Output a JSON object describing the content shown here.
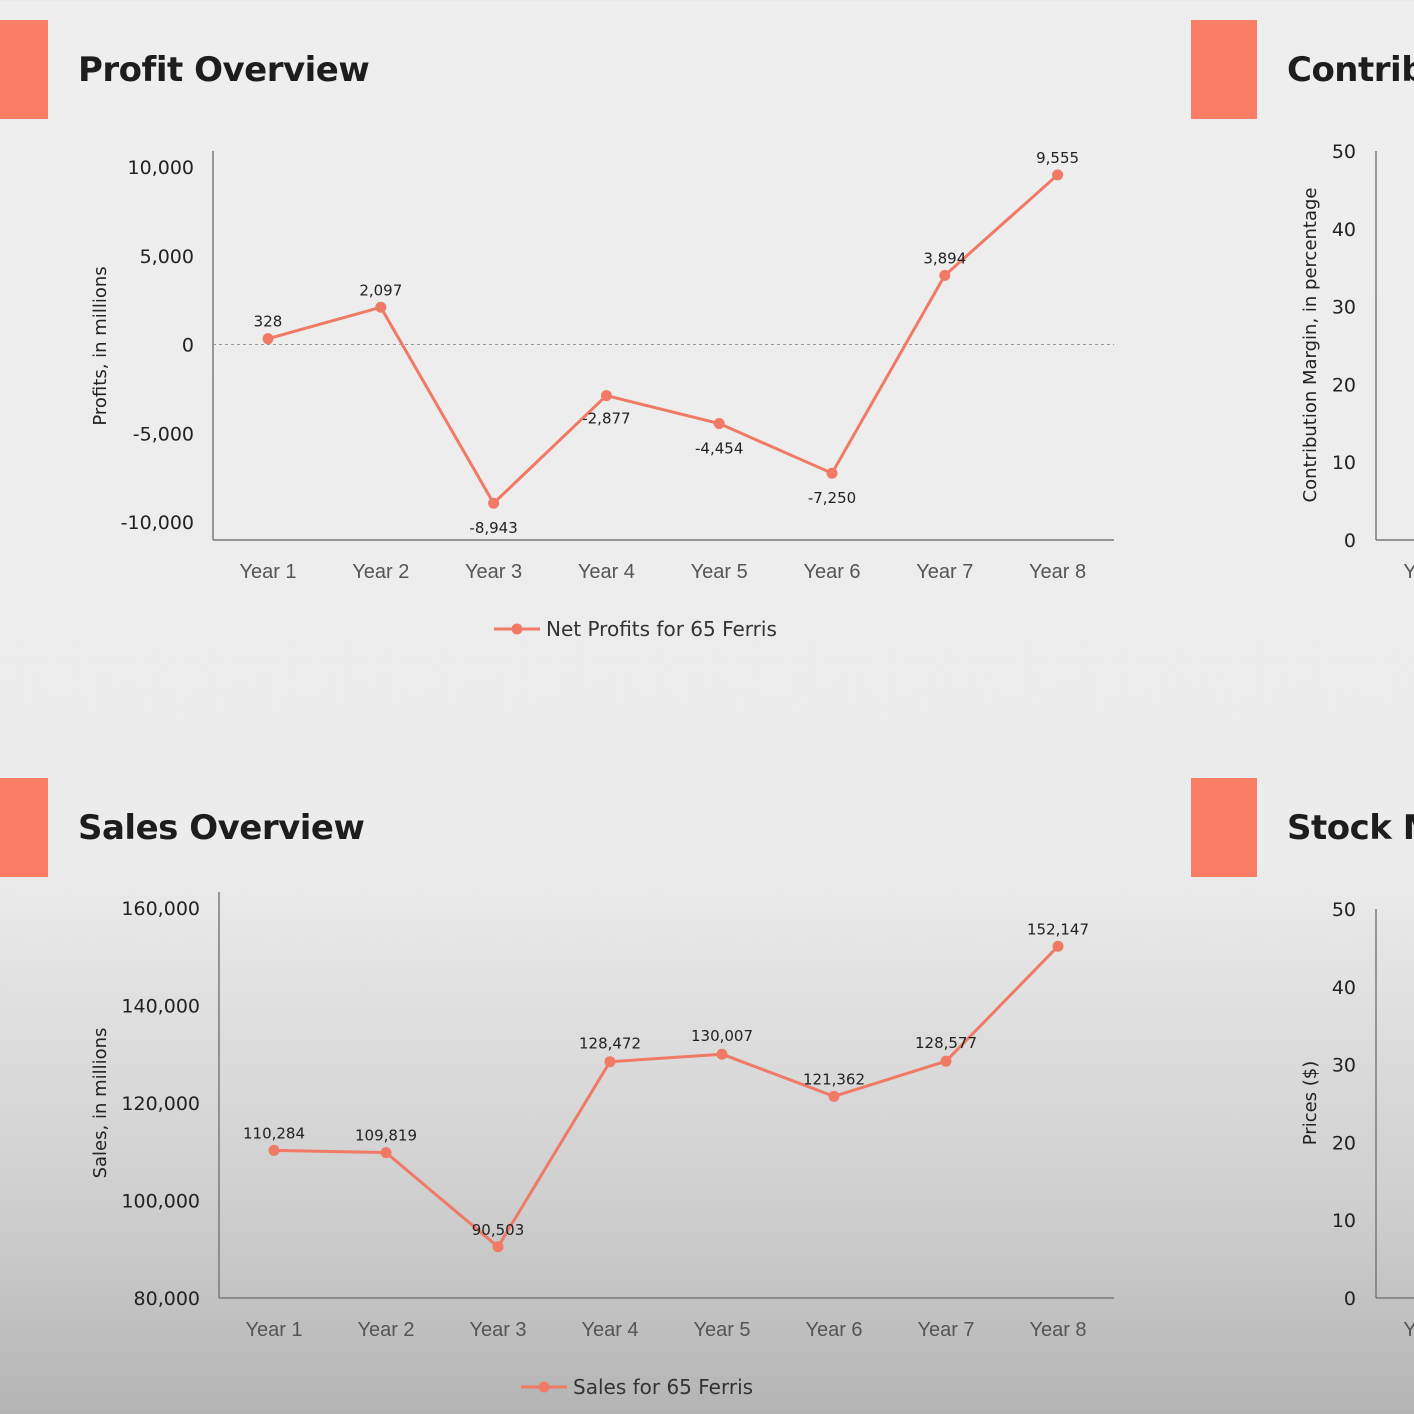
{
  "chart_data": [
    {
      "type": "line",
      "title": "Profit Overview",
      "ylabel": "Profits, in millions",
      "xlabel": "",
      "categories": [
        "Year 1",
        "Year 2",
        "Year 3",
        "Year 4",
        "Year 5",
        "Year 6",
        "Year 7",
        "Year 8"
      ],
      "series": [
        {
          "name": "Net Profits for 65 Ferris",
          "values": [
            328,
            2097,
            -8943,
            -2877,
            -4454,
            -7250,
            3894,
            9555
          ],
          "labels": [
            "328",
            "2,097",
            "-8,943",
            "-2,877",
            "-4,454",
            "-7,250",
            "3,894",
            "9,555"
          ]
        }
      ],
      "ylim": [
        -10000,
        10000
      ],
      "yticks": [
        10000,
        5000,
        0,
        -5000,
        -10000
      ],
      "ytick_labels": [
        "10,000",
        "5,000",
        "0",
        "-5,000",
        "-10,000"
      ],
      "zero_line": true,
      "grid": false,
      "legend": "bottom"
    },
    {
      "type": "line",
      "title": "Sales Overview",
      "ylabel": "Sales, in millions",
      "xlabel": "",
      "categories": [
        "Year 1",
        "Year 2",
        "Year 3",
        "Year 4",
        "Year 5",
        "Year 6",
        "Year 7",
        "Year 8"
      ],
      "series": [
        {
          "name": "Sales for 65 Ferris",
          "values": [
            110284,
            109819,
            90503,
            128472,
            130007,
            121362,
            128577,
            152147
          ],
          "labels": [
            "110,284",
            "109,819",
            "90,503",
            "128,472",
            "130,007",
            "121,362",
            "128,577",
            "152,147"
          ]
        }
      ],
      "ylim": [
        80000,
        160000
      ],
      "yticks": [
        160000,
        140000,
        120000,
        100000,
        80000
      ],
      "ytick_labels": [
        "160,000",
        "140,000",
        "120,000",
        "100,000",
        "80,000"
      ],
      "grid": false,
      "legend": "bottom"
    },
    {
      "type": "line",
      "title": "Contrib",
      "ylabel": "Contribution Margin, in percentage",
      "categories": [
        "Y"
      ],
      "ylim": [
        0,
        50
      ],
      "yticks": [
        50,
        40,
        30,
        20,
        10,
        0
      ],
      "ytick_labels": [
        "50",
        "40",
        "30",
        "20",
        "10",
        "0"
      ],
      "partial": true
    },
    {
      "type": "line",
      "title": "Stock M",
      "ylabel": "Prices ($)",
      "categories": [
        "Y"
      ],
      "ylim": [
        0,
        50
      ],
      "yticks": [
        50,
        40,
        30,
        20,
        10,
        0
      ],
      "ytick_labels": [
        "50",
        "40",
        "30",
        "20",
        "10",
        "0"
      ],
      "partial": true
    }
  ],
  "colors": {
    "accent": "#fa7d66",
    "line": "#f07a65",
    "axis": "#7a7a7a"
  }
}
